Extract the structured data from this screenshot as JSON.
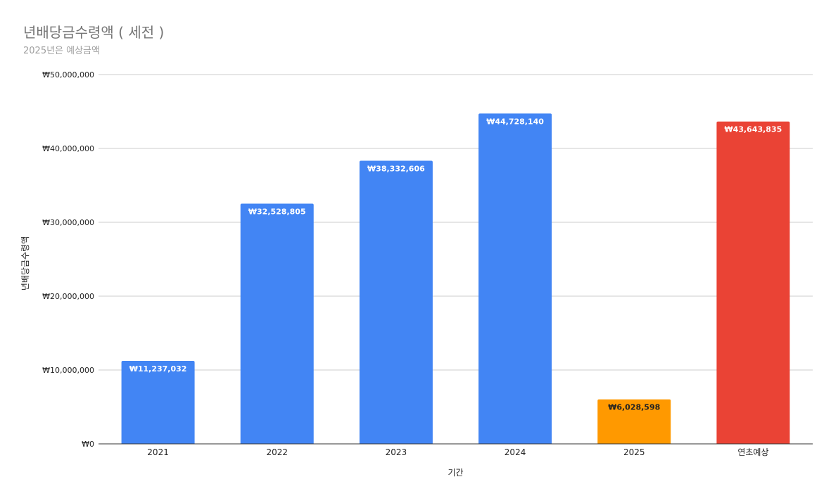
{
  "chart_data": {
    "type": "bar",
    "title": "년배당금수령액 ( 세전 )",
    "subtitle": "2025년은 예상금액",
    "xlabel": "기간",
    "ylabel": "년배당금수령액",
    "categories": [
      "2021",
      "2022",
      "2023",
      "2024",
      "2025",
      "연초예상"
    ],
    "values": [
      11237032,
      32528805,
      38332606,
      44728140,
      6028598,
      43643835
    ],
    "value_labels": [
      "₩11,237,032",
      "₩32,528,805",
      "₩38,332,606",
      "₩44,728,140",
      "₩6,028,598",
      "₩43,643,835"
    ],
    "bar_colors": [
      "#4285f4",
      "#4285f4",
      "#4285f4",
      "#4285f4",
      "#ff9900",
      "#ea4335"
    ],
    "label_colors": [
      "#ffffff",
      "#ffffff",
      "#ffffff",
      "#ffffff",
      "#222222",
      "#ffffff"
    ],
    "ylim": [
      0,
      50000000
    ],
    "yticks": [
      0,
      10000000,
      20000000,
      30000000,
      40000000,
      50000000
    ],
    "ytick_labels": [
      "₩0",
      "₩10,000,000",
      "₩20,000,000",
      "₩30,000,000",
      "₩40,000,000",
      "₩50,000,000"
    ],
    "grid": true,
    "legend": "none"
  }
}
